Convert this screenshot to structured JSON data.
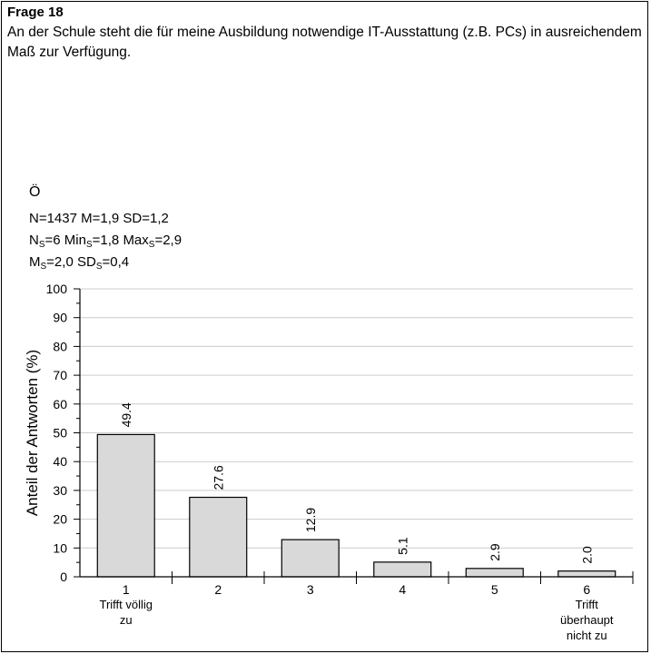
{
  "question": {
    "number": "Frage 18",
    "text": "An der Schule steht die für meine Ausbildung notwendige IT-Ausstattung (z.B. PCs) in ausreichendem Maß zur Verfügung."
  },
  "sample": {
    "label": "Ö",
    "stats_line1": {
      "n": "N=1437",
      "m": "M=1,9",
      "sd": "SD=1,2"
    },
    "stats_line2": {
      "ns_pre": "N",
      "ns_sub": "S",
      "ns_val": "=6",
      "min_pre": "Min",
      "min_sub": "S",
      "min_val": "=1,8",
      "max_pre": "Max",
      "max_sub": "S",
      "max_val": "=2,9"
    },
    "stats_line3": {
      "ms_pre": "M",
      "ms_sub": "S",
      "ms_val": "=2,0",
      "sds_pre": "SD",
      "sds_sub": "S",
      "sds_val": "=0,4"
    }
  },
  "colors": {
    "bar_fill": "#d9d9d9",
    "bar_stroke": "#000000",
    "grid": "#cccccc",
    "axis": "#000000"
  },
  "chart_data": {
    "type": "bar",
    "ylabel": "Anteil der Antworten (%)",
    "ylim": [
      0,
      100
    ],
    "yticks": [
      0,
      10,
      20,
      30,
      40,
      50,
      60,
      70,
      80,
      90,
      100
    ],
    "grid": true,
    "categories": [
      "1",
      "2",
      "3",
      "4",
      "5",
      "6"
    ],
    "category_sublabels": [
      [
        "Trifft völlig",
        "zu"
      ],
      [],
      [],
      [],
      [],
      [
        "Trifft",
        "überhaupt",
        "nicht zu"
      ]
    ],
    "values": [
      49.4,
      27.6,
      12.9,
      5.1,
      2.9,
      2.0
    ],
    "value_labels": [
      "49.4",
      "27.6",
      "12.9",
      "5.1",
      "2.9",
      "2.0"
    ]
  }
}
